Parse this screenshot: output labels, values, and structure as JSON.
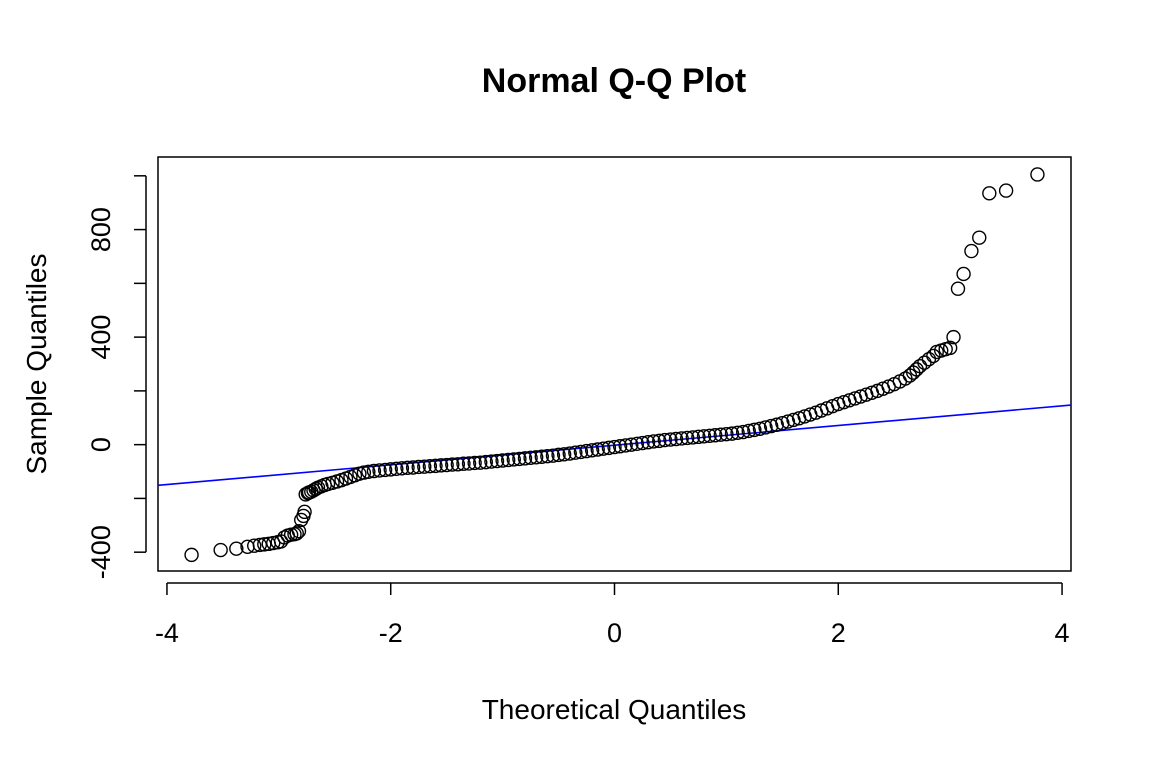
{
  "chart_data": {
    "type": "scatter",
    "title": "Normal Q-Q Plot",
    "xlabel": "Theoretical Quantiles",
    "ylabel": "Sample Quantiles",
    "xlim": [
      -4.08,
      4.08
    ],
    "ylim": [
      -470,
      1070
    ],
    "x_ticks": [
      -4,
      -2,
      0,
      2,
      4
    ],
    "x_tick_labels": [
      "-4",
      "-2",
      "0",
      "2",
      "4"
    ],
    "y_ticks": [
      -400,
      -200,
      0,
      200,
      400,
      600,
      800,
      1000
    ],
    "y_tick_labels": [
      "-400",
      "",
      "0",
      "",
      "400",
      "",
      "800",
      ""
    ],
    "grid": false,
    "legend": "none",
    "point_color": "#000000",
    "reference_line": {
      "color": "#0000ff",
      "intercept": -2,
      "slope": 36.6
    },
    "points": [
      [
        -3.78,
        -410
      ],
      [
        -3.52,
        -392
      ],
      [
        -3.38,
        -387
      ],
      [
        -3.28,
        -380
      ],
      [
        -3.22,
        -376
      ],
      [
        -3.17,
        -373
      ],
      [
        -3.13,
        -371
      ],
      [
        -3.09,
        -369
      ],
      [
        -3.05,
        -366
      ],
      [
        -3.01,
        -363
      ],
      [
        -2.98,
        -360
      ],
      [
        -2.95,
        -345
      ],
      [
        -2.92,
        -338
      ],
      [
        -2.89,
        -335
      ],
      [
        -2.86,
        -333
      ],
      [
        -2.84,
        -330
      ],
      [
        -2.82,
        -322
      ],
      [
        -2.8,
        -280
      ],
      [
        -2.78,
        -265
      ],
      [
        -2.77,
        -250
      ],
      [
        -2.76,
        -185
      ],
      [
        -2.74,
        -180
      ],
      [
        -2.73,
        -178
      ],
      [
        -2.71,
        -175
      ],
      [
        -2.69,
        -170
      ],
      [
        -2.67,
        -165
      ],
      [
        -2.65,
        -160
      ],
      [
        -2.62,
        -155
      ],
      [
        -2.59,
        -150
      ],
      [
        -2.56,
        -146
      ],
      [
        -2.52,
        -142
      ],
      [
        -2.48,
        -137
      ],
      [
        -2.44,
        -132
      ],
      [
        -2.4,
        -126
      ],
      [
        -2.36,
        -120
      ],
      [
        -2.32,
        -114
      ],
      [
        -2.28,
        -108
      ],
      [
        -2.24,
        -104
      ],
      [
        -2.2,
        -101
      ],
      [
        -2.15,
        -98
      ],
      [
        -2.1,
        -96
      ],
      [
        -2.05,
        -94
      ],
      [
        -2.0,
        -92
      ],
      [
        -1.95,
        -90
      ],
      [
        -1.9,
        -88
      ],
      [
        -1.85,
        -86
      ],
      [
        -1.8,
        -85
      ],
      [
        -1.75,
        -83
      ],
      [
        -1.7,
        -82
      ],
      [
        -1.65,
        -80
      ],
      [
        -1.6,
        -79
      ],
      [
        -1.55,
        -77
      ],
      [
        -1.5,
        -76
      ],
      [
        -1.45,
        -74
      ],
      [
        -1.4,
        -73
      ],
      [
        -1.35,
        -71
      ],
      [
        -1.3,
        -70
      ],
      [
        -1.25,
        -68
      ],
      [
        -1.2,
        -67
      ],
      [
        -1.15,
        -65
      ],
      [
        -1.1,
        -63
      ],
      [
        -1.05,
        -61
      ],
      [
        -1.0,
        -59
      ],
      [
        -0.95,
        -57
      ],
      [
        -0.9,
        -55
      ],
      [
        -0.85,
        -53
      ],
      [
        -0.8,
        -51
      ],
      [
        -0.75,
        -49
      ],
      [
        -0.7,
        -47
      ],
      [
        -0.65,
        -45
      ],
      [
        -0.6,
        -43
      ],
      [
        -0.55,
        -41
      ],
      [
        -0.5,
        -38
      ],
      [
        -0.45,
        -36
      ],
      [
        -0.4,
        -33
      ],
      [
        -0.35,
        -30
      ],
      [
        -0.3,
        -27
      ],
      [
        -0.25,
        -24
      ],
      [
        -0.2,
        -21
      ],
      [
        -0.15,
        -18
      ],
      [
        -0.1,
        -15
      ],
      [
        -0.05,
        -12
      ],
      [
        0.0,
        -9
      ],
      [
        0.05,
        -6
      ],
      [
        0.1,
        -3
      ],
      [
        0.15,
        0
      ],
      [
        0.2,
        3
      ],
      [
        0.25,
        6
      ],
      [
        0.3,
        9
      ],
      [
        0.35,
        12
      ],
      [
        0.4,
        14
      ],
      [
        0.45,
        17
      ],
      [
        0.5,
        19
      ],
      [
        0.55,
        21
      ],
      [
        0.6,
        23
      ],
      [
        0.65,
        25
      ],
      [
        0.7,
        27
      ],
      [
        0.75,
        29
      ],
      [
        0.8,
        31
      ],
      [
        0.85,
        33
      ],
      [
        0.9,
        35
      ],
      [
        0.95,
        37
      ],
      [
        1.0,
        39
      ],
      [
        1.05,
        41
      ],
      [
        1.1,
        44
      ],
      [
        1.15,
        47
      ],
      [
        1.2,
        51
      ],
      [
        1.25,
        55
      ],
      [
        1.3,
        59
      ],
      [
        1.35,
        64
      ],
      [
        1.4,
        69
      ],
      [
        1.45,
        74
      ],
      [
        1.5,
        80
      ],
      [
        1.55,
        86
      ],
      [
        1.6,
        92
      ],
      [
        1.65,
        98
      ],
      [
        1.7,
        105
      ],
      [
        1.75,
        112
      ],
      [
        1.8,
        119
      ],
      [
        1.85,
        127
      ],
      [
        1.9,
        135
      ],
      [
        1.95,
        143
      ],
      [
        2.0,
        151
      ],
      [
        2.05,
        158
      ],
      [
        2.1,
        165
      ],
      [
        2.15,
        172
      ],
      [
        2.2,
        179
      ],
      [
        2.25,
        186
      ],
      [
        2.3,
        193
      ],
      [
        2.35,
        200
      ],
      [
        2.4,
        208
      ],
      [
        2.45,
        216
      ],
      [
        2.5,
        225
      ],
      [
        2.55,
        235
      ],
      [
        2.6,
        246
      ],
      [
        2.64,
        257
      ],
      [
        2.67,
        268
      ],
      [
        2.7,
        280
      ],
      [
        2.73,
        292
      ],
      [
        2.77,
        305
      ],
      [
        2.81,
        318
      ],
      [
        2.85,
        330
      ],
      [
        2.88,
        345
      ],
      [
        2.92,
        350
      ],
      [
        2.96,
        355
      ],
      [
        3.0,
        360
      ],
      [
        3.03,
        400
      ],
      [
        3.07,
        580
      ],
      [
        3.12,
        635
      ],
      [
        3.19,
        720
      ],
      [
        3.26,
        770
      ],
      [
        3.35,
        935
      ],
      [
        3.5,
        945
      ],
      [
        3.78,
        1005
      ]
    ]
  }
}
